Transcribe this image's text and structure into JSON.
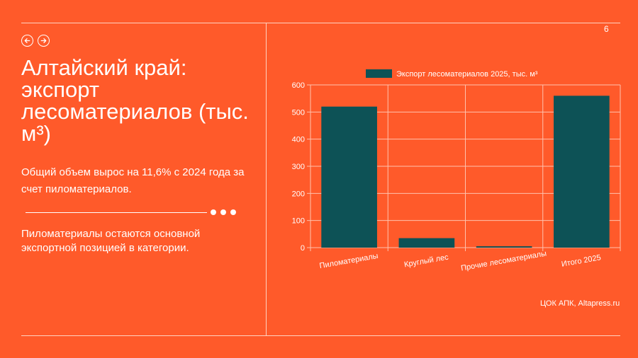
{
  "slide": {
    "page_number": "6",
    "title": "Алтайский край: экспорт лесоматериалов (тыс. м³)",
    "paragraph_1": "Общий объем вырос на 11,6% с 2024 года за счет пиломатериалов.",
    "paragraph_2": "Пиломатериалы остаются основной экспортной позицией в категории.",
    "source": "ЦОК АПК, Altapress.ru",
    "nav": {
      "prev_icon": "arrow-left-icon",
      "next_icon": "arrow-right-icon"
    },
    "colors": {
      "background": "#ff5a2a",
      "bar": "#0d5256",
      "text": "#ffffff"
    }
  },
  "chart_data": {
    "type": "bar",
    "categories": [
      "Пиломатериалы",
      "Круглый лес",
      "Прочие лесоматериалы",
      "Итого 2025"
    ],
    "series": [
      {
        "name": "Экспорт лесоматериалов 2025, тыс. м³",
        "values": [
          520,
          35,
          5,
          560
        ]
      }
    ],
    "yticks": [
      0,
      100,
      200,
      300,
      400,
      500,
      600
    ],
    "ylim": [
      0,
      600
    ],
    "grid": true,
    "legend": "top"
  }
}
